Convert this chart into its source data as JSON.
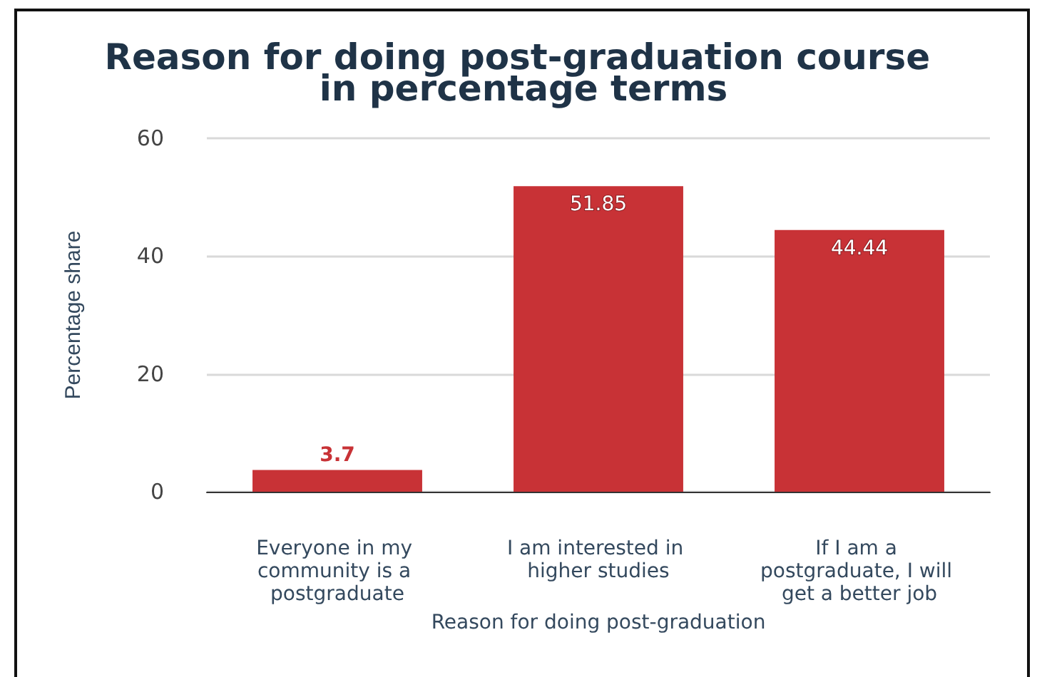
{
  "chart_data": {
    "type": "bar",
    "title": "Reason for doing post-graduation course in percentage terms",
    "xlabel": "Reason for doing post-graduation",
    "ylabel": "Percentage share",
    "categories": [
      "Everyone in my community is a postgraduate",
      "I am interested in higher studies",
      "If I am a postgraduate, I will get a better job"
    ],
    "values": [
      3.7,
      51.85,
      44.44
    ],
    "color": "#c83236",
    "ylim": [
      0,
      60
    ],
    "yticks": [
      0,
      20,
      40,
      60
    ],
    "grid": "y",
    "data_labels": true
  }
}
